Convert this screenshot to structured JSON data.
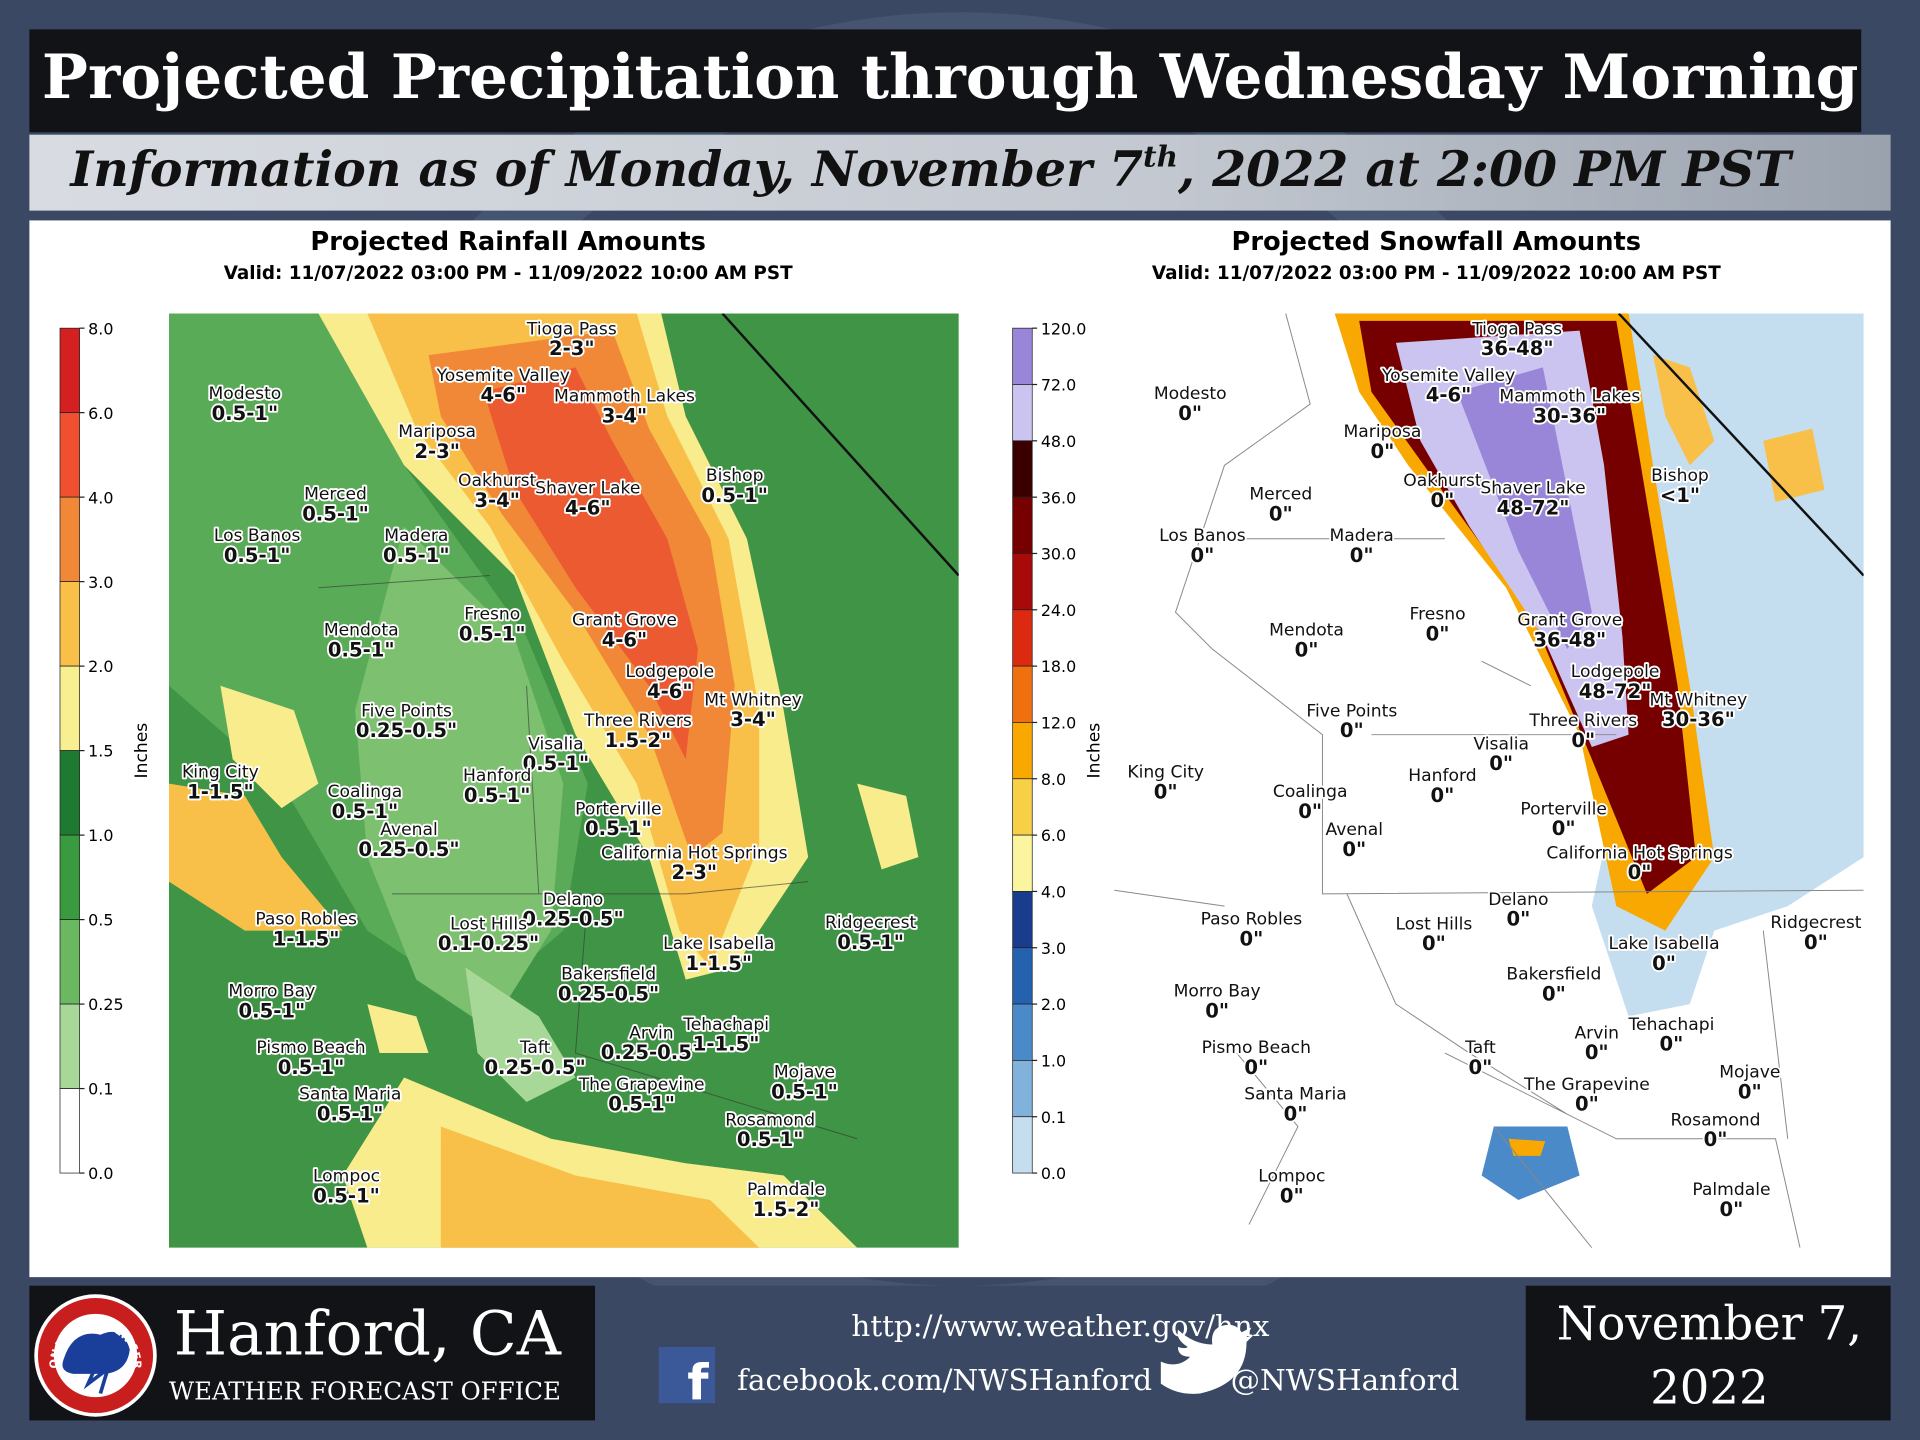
{
  "header": {
    "title": "Projected Precipitation through Wednesday Morning",
    "subtitle_parts": [
      "Information as of Monday, November 7",
      "th",
      ", 2022 at 2:00 PM PST"
    ]
  },
  "rain_map": {
    "title": "Projected Rainfall Amounts",
    "valid": "Valid: 11/07/2022 03:00 PM - 11/09/2022 10:00 AM PST",
    "legend": {
      "unit": "Inches",
      "ticks": [
        "8.0",
        "6.0",
        "4.0",
        "3.0",
        "2.0",
        "1.5",
        "1.0",
        "0.5",
        "0.25",
        "0.1",
        "0.0"
      ],
      "colors": [
        "#d42020",
        "#f05030",
        "#f08838",
        "#f8c048",
        "#f8f090",
        "#1e7a30",
        "#3a9a40",
        "#6ab860",
        "#a8d898",
        "#ffffff"
      ]
    },
    "cities": [
      {
        "name": "Tioga Pass",
        "amount": "2-3\""
      },
      {
        "name": "Yosemite Valley",
        "amount": "4-6\""
      },
      {
        "name": "Mammoth Lakes",
        "amount": "3-4\""
      },
      {
        "name": "Modesto",
        "amount": "0.5-1\""
      },
      {
        "name": "Mariposa",
        "amount": "2-3\""
      },
      {
        "name": "Merced",
        "amount": "0.5-1\""
      },
      {
        "name": "Oakhurst",
        "amount": "3-4\""
      },
      {
        "name": "Shaver Lake",
        "amount": "4-6\""
      },
      {
        "name": "Bishop",
        "amount": "0.5-1\""
      },
      {
        "name": "Los Banos",
        "amount": "0.5-1\""
      },
      {
        "name": "Madera",
        "amount": "0.5-1\""
      },
      {
        "name": "Fresno",
        "amount": "0.5-1\""
      },
      {
        "name": "Mendota",
        "amount": "0.5-1\""
      },
      {
        "name": "Grant Grove",
        "amount": "4-6\""
      },
      {
        "name": "Lodgepole",
        "amount": "4-6\""
      },
      {
        "name": "Mt Whitney",
        "amount": "3-4\""
      },
      {
        "name": "Five Points",
        "amount": "0.25-0.5\""
      },
      {
        "name": "Three Rivers",
        "amount": "1.5-2\""
      },
      {
        "name": "Visalia",
        "amount": "0.5-1\""
      },
      {
        "name": "King City",
        "amount": "1-1.5\""
      },
      {
        "name": "Hanford",
        "amount": "0.5-1\""
      },
      {
        "name": "Coalinga",
        "amount": "0.5-1\""
      },
      {
        "name": "Porterville",
        "amount": "0.5-1\""
      },
      {
        "name": "Avenal",
        "amount": "0.25-0.5\""
      },
      {
        "name": "California Hot Springs",
        "amount": "2-3\""
      },
      {
        "name": "Delano",
        "amount": "0.25-0.5\""
      },
      {
        "name": "Ridgecrest",
        "amount": "0.5-1\""
      },
      {
        "name": "Paso Robles",
        "amount": "1-1.5\""
      },
      {
        "name": "Lost Hills",
        "amount": "0.1-0.25\""
      },
      {
        "name": "Lake Isabella",
        "amount": "1-1.5\""
      },
      {
        "name": "Bakersfield",
        "amount": "0.25-0.5\""
      },
      {
        "name": "Morro Bay",
        "amount": "0.5-1\""
      },
      {
        "name": "Arvin",
        "amount": "0.25-0.5\""
      },
      {
        "name": "Tehachapi",
        "amount": "1-1.5\""
      },
      {
        "name": "Pismo Beach",
        "amount": "0.5-1\""
      },
      {
        "name": "Taft",
        "amount": "0.25-0.5\""
      },
      {
        "name": "Mojave",
        "amount": "0.5-1\""
      },
      {
        "name": "The Grapevine",
        "amount": "0.5-1\""
      },
      {
        "name": "Santa Maria",
        "amount": "0.5-1\""
      },
      {
        "name": "Rosamond",
        "amount": "0.5-1\""
      },
      {
        "name": "Lompoc",
        "amount": "0.5-1\""
      },
      {
        "name": "Palmdale",
        "amount": "1.5-2\""
      }
    ]
  },
  "snow_map": {
    "title": "Projected Snowfall Amounts",
    "valid": "Valid: 11/07/2022 03:00 PM - 11/09/2022 10:00 AM PST",
    "legend": {
      "unit": "Inches",
      "ticks": [
        "120.0",
        "72.0",
        "48.0",
        "36.0",
        "30.0",
        "24.0",
        "18.0",
        "12.0",
        "8.0",
        "6.0",
        "4.0",
        "3.0",
        "2.0",
        "1.0",
        "0.1",
        "0.0"
      ],
      "colors": [
        "#9a86d8",
        "#cbc3f0",
        "#3a0000",
        "#760000",
        "#a80a0a",
        "#dc2a10",
        "#f07010",
        "#f8a800",
        "#f8d048",
        "#fbf5a0",
        "#1a3c8c",
        "#2462b0",
        "#4a8ac8",
        "#80b2dc",
        "#c4def0"
      ]
    },
    "cities": [
      {
        "name": "Tioga Pass",
        "amount": "36-48\""
      },
      {
        "name": "Yosemite Valley",
        "amount": "4-6\""
      },
      {
        "name": "Mammoth Lakes",
        "amount": "30-36\""
      },
      {
        "name": "Modesto",
        "amount": "0\""
      },
      {
        "name": "Mariposa",
        "amount": "0\""
      },
      {
        "name": "Merced",
        "amount": "0\""
      },
      {
        "name": "Oakhurst",
        "amount": "0\""
      },
      {
        "name": "Shaver Lake",
        "amount": "48-72\""
      },
      {
        "name": "Bishop",
        "amount": "<1\""
      },
      {
        "name": "Los Banos",
        "amount": "0\""
      },
      {
        "name": "Madera",
        "amount": "0\""
      },
      {
        "name": "Fresno",
        "amount": "0\""
      },
      {
        "name": "Mendota",
        "amount": "0\""
      },
      {
        "name": "Grant Grove",
        "amount": "36-48\""
      },
      {
        "name": "Lodgepole",
        "amount": "48-72\""
      },
      {
        "name": "Mt Whitney",
        "amount": "30-36\""
      },
      {
        "name": "Five Points",
        "amount": "0\""
      },
      {
        "name": "Three Rivers",
        "amount": "0\""
      },
      {
        "name": "Visalia",
        "amount": "0\""
      },
      {
        "name": "King City",
        "amount": "0\""
      },
      {
        "name": "Hanford",
        "amount": "0\""
      },
      {
        "name": "Coalinga",
        "amount": "0\""
      },
      {
        "name": "Porterville",
        "amount": "0\""
      },
      {
        "name": "Avenal",
        "amount": "0\""
      },
      {
        "name": "California Hot Springs",
        "amount": "0\""
      },
      {
        "name": "Delano",
        "amount": "0\""
      },
      {
        "name": "Ridgecrest",
        "amount": "0\""
      },
      {
        "name": "Paso Robles",
        "amount": "0\""
      },
      {
        "name": "Lost Hills",
        "amount": "0\""
      },
      {
        "name": "Lake Isabella",
        "amount": "0\""
      },
      {
        "name": "Bakersfield",
        "amount": "0\""
      },
      {
        "name": "Morro Bay",
        "amount": "0\""
      },
      {
        "name": "Arvin",
        "amount": "0\""
      },
      {
        "name": "Tehachapi",
        "amount": "0\""
      },
      {
        "name": "Pismo Beach",
        "amount": "0\""
      },
      {
        "name": "Taft",
        "amount": "0\""
      },
      {
        "name": "Mojave",
        "amount": "0\""
      },
      {
        "name": "The Grapevine",
        "amount": "0\""
      },
      {
        "name": "Santa Maria",
        "amount": "0\""
      },
      {
        "name": "Rosamond",
        "amount": "0\""
      },
      {
        "name": "Lompoc",
        "amount": "0\""
      },
      {
        "name": "Palmdale",
        "amount": "0\""
      }
    ]
  },
  "footer": {
    "logo_text": "NATIONAL WEATHER SERVICE",
    "office": "Hanford, CA",
    "office_type": "WEATHER FORECAST OFFICE",
    "url": "http://www.weather.gov/hnx",
    "facebook": "facebook.com/NWSHanford",
    "twitter": "@NWSHanford",
    "date_lines": [
      "November 7,",
      "2022"
    ]
  }
}
